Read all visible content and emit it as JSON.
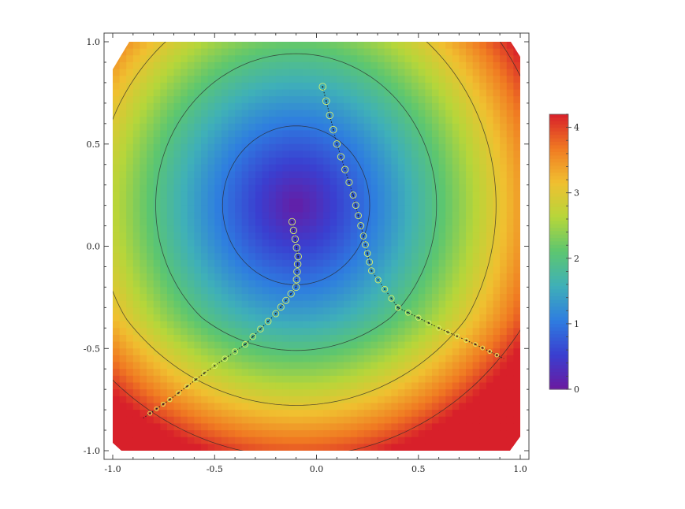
{
  "chart_data": {
    "type": "heatmap",
    "title": "",
    "xlabel": "",
    "ylabel": "",
    "xlim": [
      -1.0,
      1.0
    ],
    "ylim": [
      -1.0,
      1.0
    ],
    "x_ticks": [
      "-1.0",
      "-0.5",
      "0.0",
      "0.5",
      "1.0"
    ],
    "x_tick_values": [
      -1.0,
      -0.5,
      0.0,
      0.5,
      1.0
    ],
    "y_ticks": [
      "-1.0",
      "-0.5",
      "0.0",
      "0.5",
      "1.0"
    ],
    "y_tick_values": [
      -1.0,
      -0.5,
      0.0,
      0.5,
      1.0
    ],
    "colorbar": {
      "range": [
        0,
        4.2
      ],
      "ticks": [
        "0",
        "1",
        "2",
        "3",
        "4"
      ],
      "tick_values": [
        0,
        1,
        2,
        3,
        4
      ],
      "colormap": [
        "#6a1aa0",
        "#3a3fd0",
        "#2e7de0",
        "#3fb0b8",
        "#5cc670",
        "#b6d63a",
        "#f0c030",
        "#f07a22",
        "#d8202a"
      ]
    },
    "contour_levels": [
      1,
      2,
      3,
      4
    ],
    "branch_curves": [
      {
        "name": "",
        "points": [
          [
            0.03,
            0.78
          ],
          [
            0.1,
            0.5
          ],
          [
            0.18,
            0.25
          ],
          [
            0.23,
            0.05
          ],
          [
            0.27,
            -0.12
          ],
          [
            0.4,
            -0.3
          ],
          [
            0.6,
            -0.4
          ],
          [
            0.78,
            -0.48
          ],
          [
            0.92,
            -0.55
          ]
        ]
      },
      {
        "name": "",
        "points": [
          [
            -0.12,
            0.12
          ],
          [
            -0.09,
            -0.05
          ],
          [
            -0.1,
            -0.2
          ],
          [
            -0.2,
            -0.33
          ],
          [
            -0.35,
            -0.48
          ],
          [
            -0.55,
            -0.62
          ],
          [
            -0.72,
            -0.75
          ],
          [
            -0.85,
            -0.84
          ]
        ]
      }
    ],
    "grid": false,
    "legend": "colorbar-right"
  }
}
